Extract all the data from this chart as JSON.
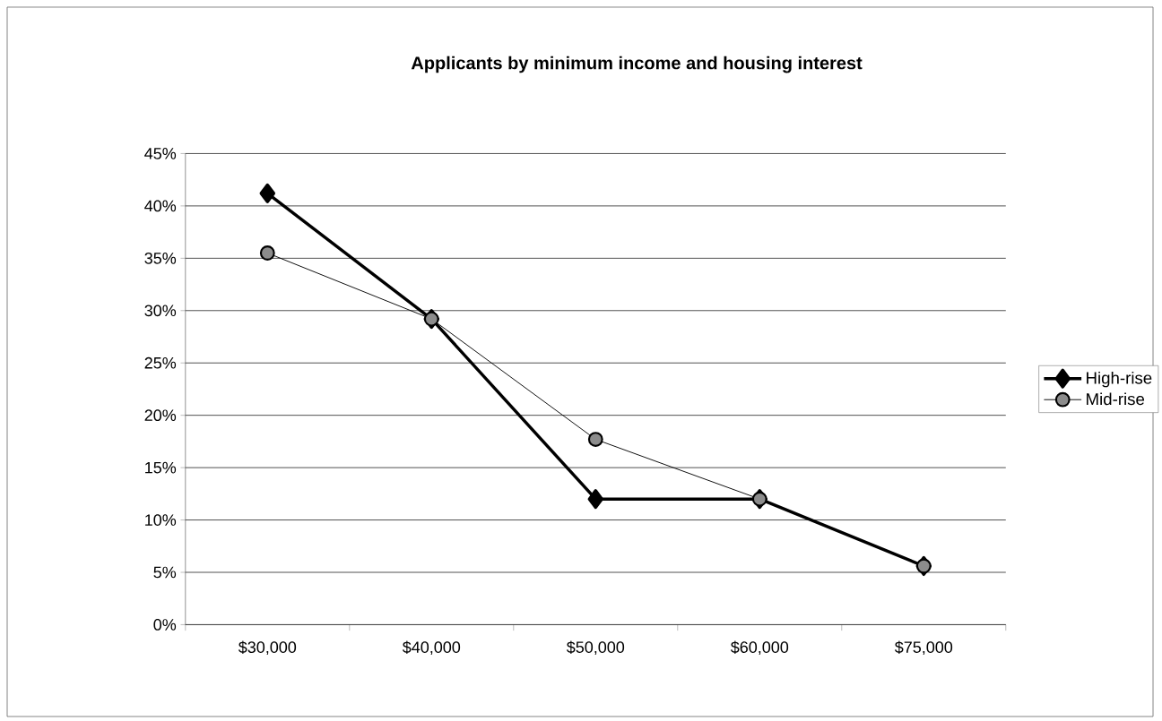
{
  "chart_data": {
    "type": "line",
    "title": "Applicants by minimum income and housing interest",
    "categories": [
      "$30,000",
      "$40,000",
      "$50,000",
      "$60,000",
      "$75,000"
    ],
    "series": [
      {
        "name": "High-rise",
        "color": "#000000",
        "marker": "diamond",
        "values": [
          41.2,
          29.2,
          12.0,
          12.0,
          5.6
        ]
      },
      {
        "name": "Mid-rise",
        "color": "#000000",
        "marker": "circle",
        "values": [
          35.5,
          29.2,
          17.7,
          12.0,
          5.6
        ]
      }
    ],
    "ylim": [
      0,
      45
    ],
    "yticks": [
      {
        "value": 0,
        "label": "0%"
      },
      {
        "value": 5,
        "label": "5%"
      },
      {
        "value": 10,
        "label": "10%"
      },
      {
        "value": 15,
        "label": "15%"
      },
      {
        "value": 20,
        "label": "20%"
      },
      {
        "value": 25,
        "label": "25%"
      },
      {
        "value": 30,
        "label": "30%"
      },
      {
        "value": 35,
        "label": "35%"
      },
      {
        "value": 40,
        "label": "40%"
      },
      {
        "value": 45,
        "label": "45%"
      }
    ],
    "grid": "y",
    "legend": "right",
    "line_style": "solid"
  }
}
